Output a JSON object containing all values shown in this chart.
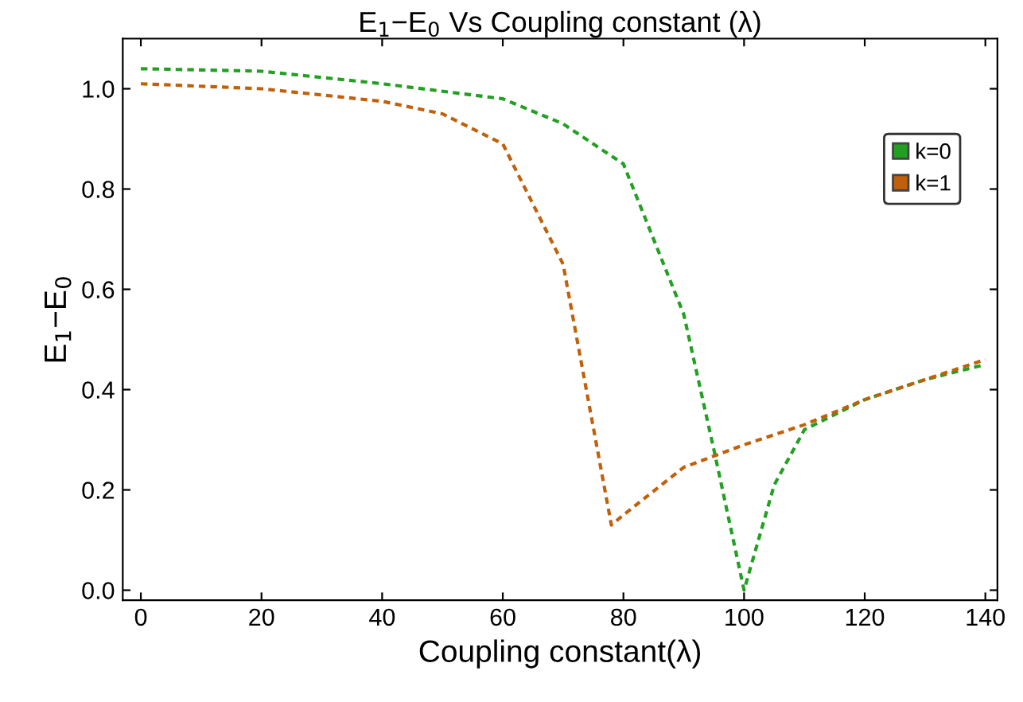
{
  "chart_data": {
    "type": "line",
    "title": "E$_{1}$−E$_{0}$ Vs Coupling constant (λ)",
    "xlabel": "Coupling constant(λ)",
    "ylabel": "E$_{1}$−E$_{0}$",
    "series": [
      {
        "name": "k=0",
        "color": "#22a022",
        "x": [
          0,
          20,
          40,
          60,
          70,
          80,
          90,
          95,
          100,
          105,
          110,
          120,
          130,
          140
        ],
        "values": [
          1.04,
          1.035,
          1.01,
          0.98,
          0.93,
          0.85,
          0.55,
          0.28,
          0.0,
          0.21,
          0.32,
          0.38,
          0.42,
          0.45
        ]
      },
      {
        "name": "k=1",
        "color": "#c0600a",
        "x": [
          0,
          20,
          40,
          50,
          60,
          70,
          78,
          80,
          90,
          100,
          110,
          120,
          130,
          140
        ],
        "values": [
          1.01,
          1.0,
          0.975,
          0.95,
          0.89,
          0.65,
          0.13,
          0.15,
          0.245,
          0.29,
          0.33,
          0.38,
          0.42,
          0.46
        ]
      }
    ],
    "xlim": [
      -3,
      142
    ],
    "ylim": [
      -0.02,
      1.1
    ],
    "xticks": [
      0,
      20,
      40,
      60,
      80,
      100,
      120,
      140
    ],
    "yticks": [
      {
        "value": 0,
        "label": "0.0"
      },
      0.2,
      0.4,
      0.6,
      0.8,
      {
        "value": 1,
        "label": "1.0"
      }
    ],
    "line_style": "dashed",
    "marker": "none",
    "legend": "top right",
    "grid": false
  }
}
